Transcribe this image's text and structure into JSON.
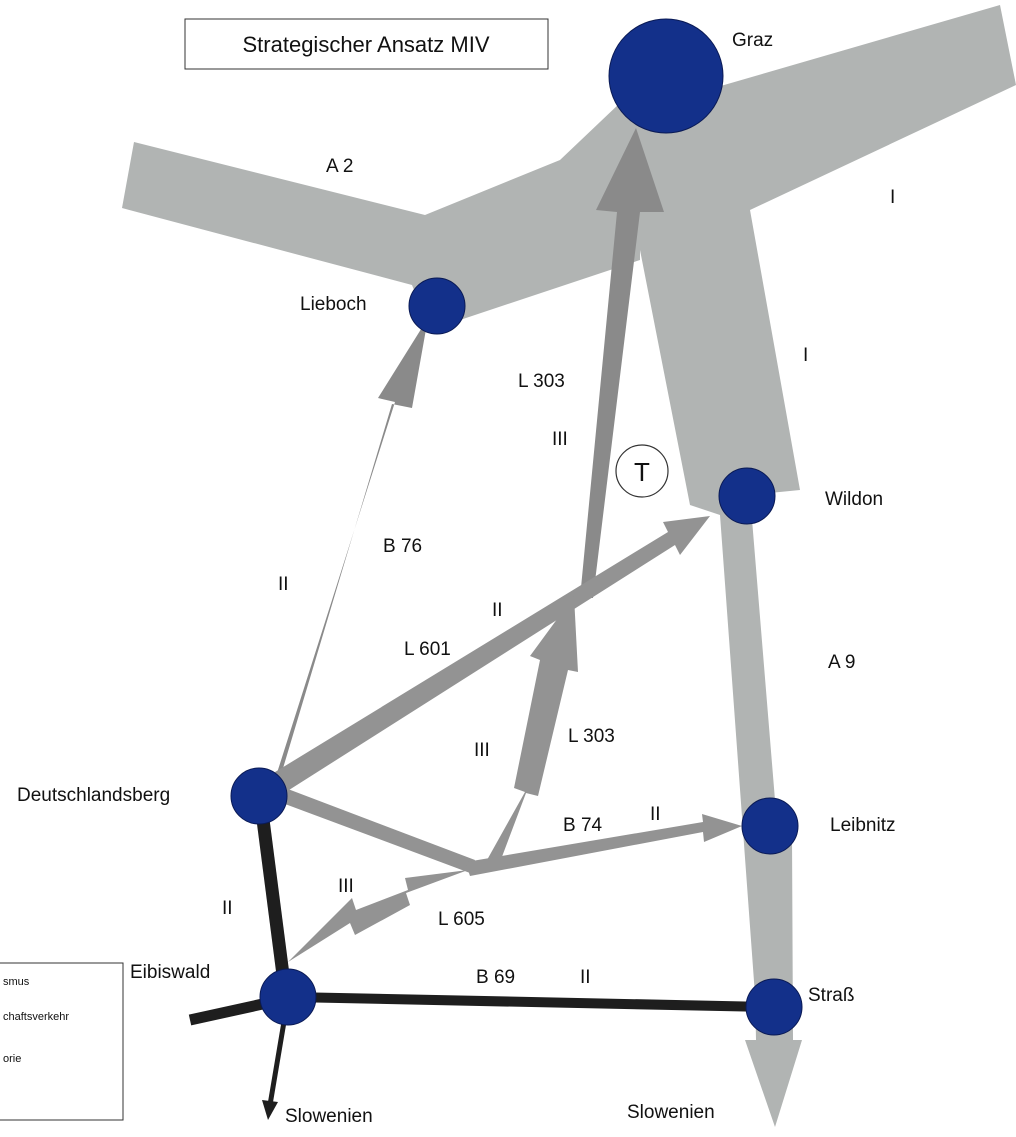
{
  "title": "Strategischer Ansatz MIV",
  "colors": {
    "motorway": "#b1b4b3",
    "route_gray": "#8a8a8a",
    "route_light": "#939393",
    "road_black": "#1e1e1e",
    "node": "#13308a",
    "node_stroke": "#0a1a55"
  },
  "places": {
    "graz": "Graz",
    "lieboch": "Lieboch",
    "wildon": "Wildon",
    "deutschlandsberg": "Deutschlandsberg",
    "leibnitz": "Leibnitz",
    "eibiswald": "Eibiswald",
    "strass": "Straß",
    "slowenien_west": "Slowenien",
    "slowenien_east": "Slowenien"
  },
  "roads": {
    "a2": "A 2",
    "a9": "A 9",
    "b76": "B 76",
    "l303_north": "L 303",
    "l303_south": "L 303",
    "l601": "L 601",
    "b74": "B 74",
    "l605": "L 605",
    "b69": "B 69"
  },
  "categories": {
    "i_east": "I",
    "i_a9": "I",
    "ii_b76": "II",
    "iii_l303_north": "III",
    "ii_l601": "II",
    "iii_l303_south": "III",
    "ii_b74": "II",
    "iii_l605": "III",
    "ii_black": "II",
    "ii_b69": "II"
  },
  "tourism_marker": "T",
  "legend": {
    "items": [
      "smus",
      "chaftsverkehr",
      "orie"
    ]
  }
}
